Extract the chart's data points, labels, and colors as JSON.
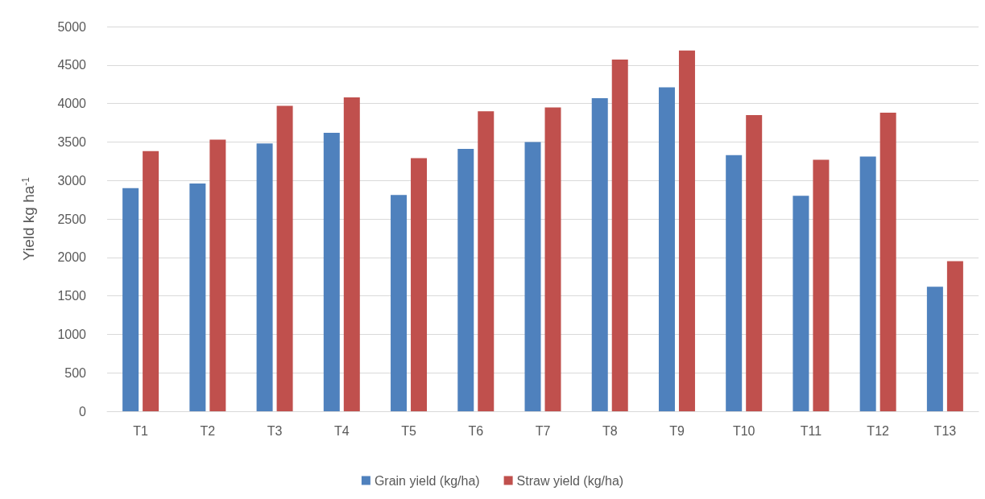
{
  "chart_data": {
    "type": "bar",
    "ylabel": "Yield kg ha$^{-1}$",
    "categories": [
      "T1",
      "T2",
      "T3",
      "T4",
      "T5",
      "T6",
      "T7",
      "T8",
      "T9",
      "T10",
      "T11",
      "T12",
      "T13"
    ],
    "series": [
      {
        "name": "Grain yield (kg/ha)",
        "color": "#4f81bd",
        "values": [
          2900,
          2960,
          3480,
          3620,
          2810,
          3410,
          3500,
          4070,
          4210,
          3330,
          2800,
          3310,
          1620
        ]
      },
      {
        "name": "Straw yield (kg/ha)",
        "color": "#c0504d",
        "values": [
          3380,
          3530,
          3970,
          4080,
          3290,
          3900,
          3950,
          4570,
          4690,
          3850,
          3270,
          3880,
          1950
        ]
      }
    ],
    "ylim": [
      0,
      5000
    ],
    "yticks": [
      0,
      500,
      1000,
      1500,
      2000,
      2500,
      3000,
      3500,
      4000,
      4500,
      5000
    ],
    "grid": true,
    "legend": "bottom"
  }
}
